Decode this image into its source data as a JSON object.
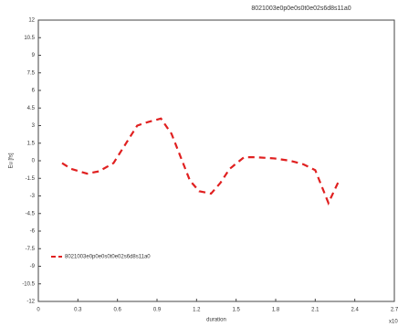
{
  "chart_data": {
    "type": "line",
    "title": "8021003e0p0e0s0t0e02s6d8s11a0",
    "x_label": "duration",
    "y_label": "Eu [fs]",
    "x_multiplier": "x10",
    "x": [
      0.18,
      0.25,
      0.37,
      0.46,
      0.57,
      0.66,
      0.75,
      0.83,
      0.93,
      1.01,
      1.15,
      1.22,
      1.31,
      1.38,
      1.45,
      1.56,
      1.65,
      1.79,
      1.91,
      2.01,
      2.1,
      2.2,
      2.28
    ],
    "series": [
      {
        "name": "8021003e0p0e0s0t0e02s6d8s11a0",
        "color": "#e02020",
        "values": [
          -0.2,
          -0.7,
          -1.1,
          -0.9,
          -0.2,
          1.4,
          3.0,
          3.3,
          3.6,
          2.3,
          -1.7,
          -2.6,
          -2.8,
          -1.9,
          -0.7,
          0.3,
          0.3,
          0.2,
          0,
          -0.3,
          -0.8,
          -3.6,
          -1.7
        ]
      }
    ],
    "xlim": [
      0,
      2.7
    ],
    "xticks": [
      0,
      0.3,
      0.6,
      0.9,
      1.2,
      1.5,
      1.8,
      2.1,
      2.4,
      2.7
    ],
    "ylim": [
      -12,
      12
    ],
    "yticks": [
      12,
      10.5,
      9,
      7.5,
      6,
      4.5,
      3,
      1.5,
      0,
      -1.5,
      -3,
      -4.5,
      -6,
      -7.5,
      -9,
      -10.5,
      -12
    ],
    "grid": false,
    "legend": "lower-left"
  }
}
